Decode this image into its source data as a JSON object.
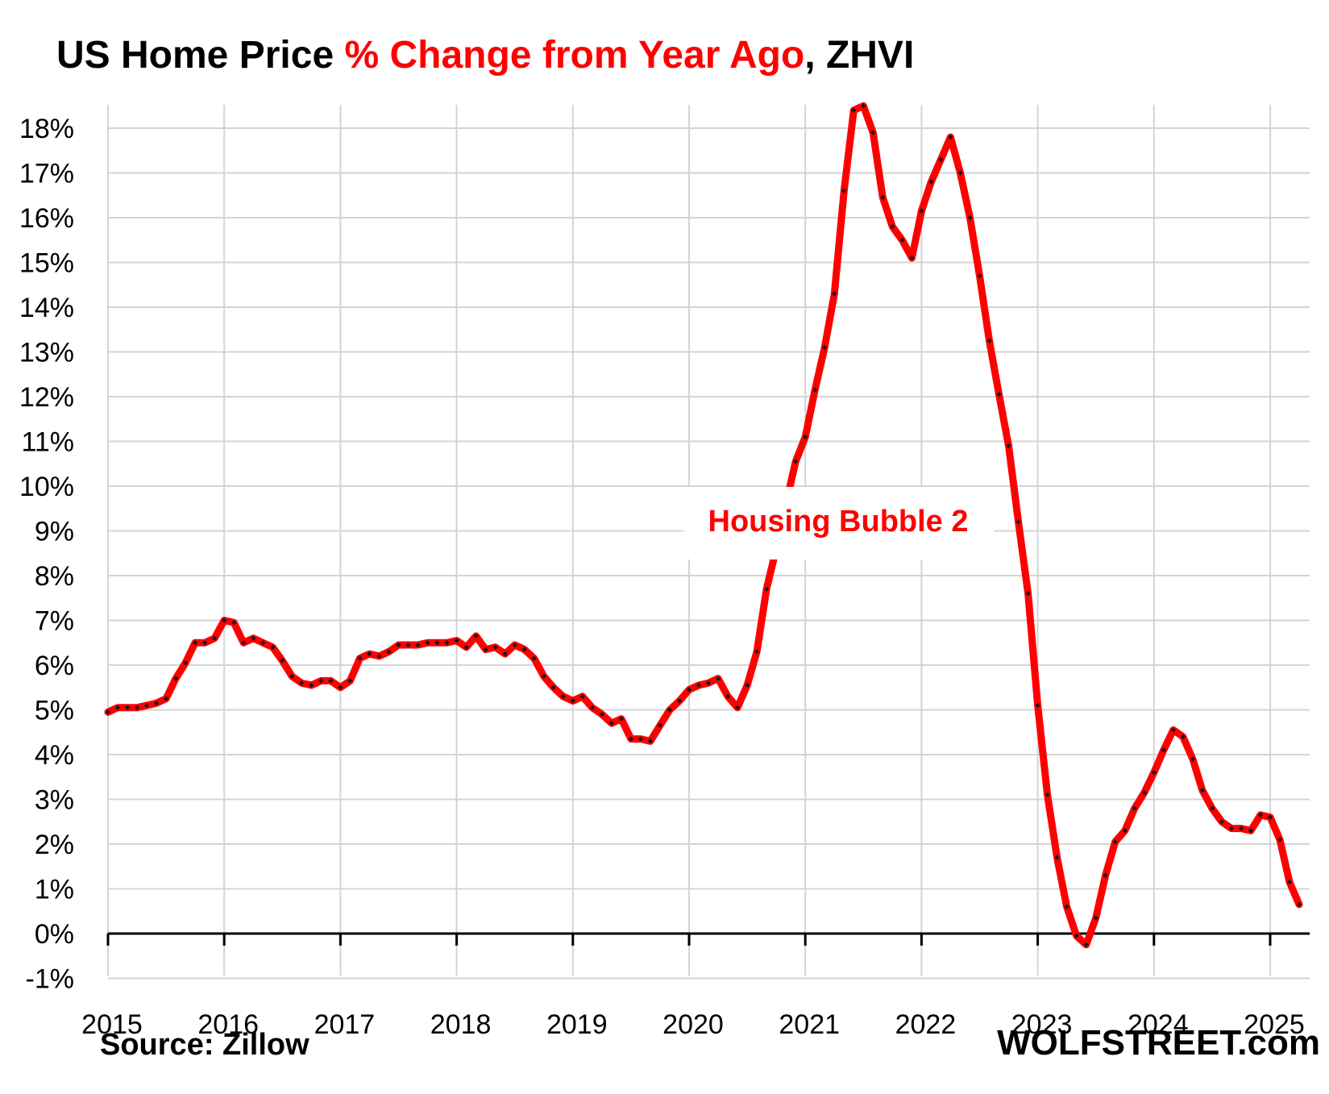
{
  "title": {
    "part1": "US Home Price ",
    "part2": "% Change from Year Ago",
    "part3": ", ZHVI",
    "color_main": "#000000",
    "color_accent": "#ff0000"
  },
  "source": "Source: Zillow",
  "brand": "WOLFSTREET.com",
  "annotation": "Housing Bubble 2",
  "chart_data": {
    "type": "line",
    "title": "US Home Price % Change from Year Ago, ZHVI",
    "xlabel": "",
    "ylabel": "",
    "xlim": [
      2015,
      2025.35
    ],
    "ylim": [
      -1,
      18
    ],
    "grid": true,
    "x_ticks": [
      2015,
      2016,
      2017,
      2018,
      2019,
      2020,
      2021,
      2022,
      2023,
      2024,
      2025
    ],
    "x_tick_labels": [
      "2015",
      "2016",
      "2017",
      "2018",
      "2019",
      "2020",
      "2021",
      "2022",
      "2023",
      "2024",
      "2025"
    ],
    "y_ticks": [
      -1,
      0,
      1,
      2,
      3,
      4,
      5,
      6,
      7,
      8,
      9,
      10,
      11,
      12,
      13,
      14,
      15,
      16,
      17,
      18
    ],
    "y_tick_labels": [
      "-1%",
      "0%",
      "1%",
      "2%",
      "3%",
      "4%",
      "5%",
      "6%",
      "7%",
      "8%",
      "9%",
      "10%",
      "11%",
      "12%",
      "13%",
      "14%",
      "15%",
      "16%",
      "17%",
      "18%"
    ],
    "line_color": "#ff0000",
    "marker_color": "#1a1a1a",
    "series": [
      {
        "start_year": 2015,
        "start_month": 1,
        "values": [
          4.95,
          5.05,
          5.05,
          5.05,
          5.1,
          5.15,
          5.25,
          5.7,
          6.05,
          6.5,
          6.5,
          6.6,
          7.0,
          6.95,
          6.5,
          6.6,
          6.5,
          6.4,
          6.1,
          5.75,
          5.6,
          5.55,
          5.65,
          5.65,
          5.5,
          5.65,
          6.15,
          6.25,
          6.2,
          6.3,
          6.45,
          6.45,
          6.45,
          6.5,
          6.5,
          6.5,
          6.55,
          6.4,
          6.65,
          6.35,
          6.4,
          6.25,
          6.45,
          6.35,
          6.15,
          5.75,
          5.5,
          5.3,
          5.2,
          5.3,
          5.05,
          4.9,
          4.7,
          4.8,
          4.35,
          4.35,
          4.3,
          4.65,
          5.0,
          5.2,
          5.45,
          5.55,
          5.6,
          5.7,
          5.3,
          5.05,
          5.55,
          6.3,
          7.7,
          8.6,
          9.6,
          10.55,
          11.1,
          12.15,
          13.1,
          14.3,
          16.6,
          18.4,
          18.5,
          17.9,
          16.45,
          15.8,
          15.5,
          15.1,
          16.15,
          16.8,
          17.3,
          17.8,
          17.0,
          16.0,
          14.7,
          13.25,
          12.05,
          10.9,
          9.2,
          7.6,
          5.1,
          3.1,
          1.7,
          0.6,
          -0.05,
          -0.25,
          0.35,
          1.3,
          2.05,
          2.3,
          2.8,
          3.15,
          3.6,
          4.1,
          4.55,
          4.4,
          3.9,
          3.2,
          2.8,
          2.5,
          2.35,
          2.35,
          2.3,
          2.65,
          2.6,
          2.1,
          1.15,
          0.65
        ]
      }
    ]
  }
}
